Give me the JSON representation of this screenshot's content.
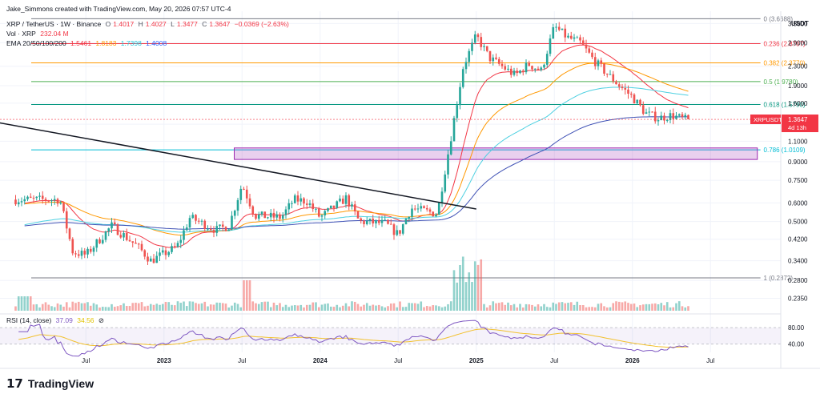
{
  "header": {
    "author_line": "Jake_Simmons created with TradingView.com, May 20, 2026 07:57 UTC-4",
    "symbol": "XRP / TetherUS · 1W · Binance",
    "ohlc": {
      "o_label": "O",
      "o": "1.4017",
      "h_label": "H",
      "h": "1.4027",
      "l_label": "L",
      "l": "1.3477",
      "c_label": "C",
      "c": "1.3647",
      "change": "−0.0369 (−2.63%)"
    },
    "vol_label": "Vol · XRP",
    "vol_value": "232.04 M",
    "ema_label": "EMA 20/50/100/200",
    "ema_values": [
      "1.5461",
      "1.8183",
      "1.7398",
      "1.4008"
    ],
    "rsi_label": "RSI (14, close)",
    "rsi_values": [
      "37.09",
      "34.56"
    ]
  },
  "price_axis": {
    "currency": "USDT",
    "ticks": [
      "3.5000",
      "2.9000",
      "2.3000",
      "1.9000",
      "1.6000",
      "1.3000",
      "1.1000",
      "0.9000",
      "0.7500",
      "0.6000",
      "0.5000",
      "0.4200",
      "0.3400",
      "0.2800",
      "0.2350"
    ],
    "current_label": "XRPUSDT",
    "current_price": "1.3647",
    "countdown": "4d 13h"
  },
  "rsi_axis": {
    "ticks": [
      "80.00",
      "40.00"
    ]
  },
  "time_axis": {
    "labels": [
      "Jul",
      "2023",
      "Jul",
      "2024",
      "Jul",
      "2025",
      "Jul",
      "2026",
      "Jul"
    ]
  },
  "fib_levels": [
    {
      "label": "0 (3.6688)",
      "ratio": 0,
      "price": 3.6688,
      "color": "#787b86"
    },
    {
      "label": "0.236 (2.8707)",
      "ratio": 0.236,
      "price": 2.8707,
      "color": "#f23645"
    },
    {
      "label": "0.382 (2.3770)",
      "ratio": 0.382,
      "price": 2.377,
      "color": "#ff9800"
    },
    {
      "label": "0.5 (1.9780)",
      "ratio": 0.5,
      "price": 1.978,
      "color": "#4caf50"
    },
    {
      "label": "0.618 (1.5790)",
      "ratio": 0.618,
      "price": 1.579,
      "color": "#089981"
    },
    {
      "label": "0.786 (1.0109)",
      "ratio": 0.786,
      "price": 1.0109,
      "color": "#00bcd4"
    },
    {
      "label": "1 (0.2872)",
      "ratio": 1,
      "price": 0.2872,
      "color": "#787b86"
    }
  ],
  "chart_data": {
    "type": "candlestick",
    "symbol": "XRPUSDT",
    "interval": "1W",
    "y_scale": "log",
    "ylim": [
      0.22,
      4.0
    ],
    "close_path": [
      {
        "t": "2022-05",
        "c": 0.62
      },
      {
        "t": "2022-06",
        "c": 0.37
      },
      {
        "t": "2022-07",
        "c": 0.36
      },
      {
        "t": "2022-09",
        "c": 0.48
      },
      {
        "t": "2022-11",
        "c": 0.39
      },
      {
        "t": "2022-12",
        "c": 0.34
      },
      {
        "t": "2023-02",
        "c": 0.39
      },
      {
        "t": "2023-03",
        "c": 0.52
      },
      {
        "t": "2023-05",
        "c": 0.46
      },
      {
        "t": "2023-06",
        "c": 0.48
      },
      {
        "t": "2023-07",
        "c": 0.72
      },
      {
        "t": "2023-08",
        "c": 0.53
      },
      {
        "t": "2023-10",
        "c": 0.52
      },
      {
        "t": "2023-11",
        "c": 0.62
      },
      {
        "t": "2023-12",
        "c": 0.61
      },
      {
        "t": "2024-01",
        "c": 0.52
      },
      {
        "t": "2024-03",
        "c": 0.63
      },
      {
        "t": "2024-04",
        "c": 0.5
      },
      {
        "t": "2024-06",
        "c": 0.49
      },
      {
        "t": "2024-07",
        "c": 0.44
      },
      {
        "t": "2024-08",
        "c": 0.57
      },
      {
        "t": "2024-10",
        "c": 0.54
      },
      {
        "t": "2024-11",
        "c": 1.1
      },
      {
        "t": "2024-12",
        "c": 2.3
      },
      {
        "t": "2025-01",
        "c": 3.1
      },
      {
        "t": "2025-02",
        "c": 2.5
      },
      {
        "t": "2025-04",
        "c": 2.1
      },
      {
        "t": "2025-05",
        "c": 2.35
      },
      {
        "t": "2025-06",
        "c": 2.2
      },
      {
        "t": "2025-07",
        "c": 3.4
      },
      {
        "t": "2025-08",
        "c": 3.05
      },
      {
        "t": "2025-09",
        "c": 2.9
      },
      {
        "t": "2025-10",
        "c": 2.45
      },
      {
        "t": "2025-11",
        "c": 2.15
      },
      {
        "t": "2025-12",
        "c": 1.9
      },
      {
        "t": "2026-01",
        "c": 1.7
      },
      {
        "t": "2026-02",
        "c": 1.45
      },
      {
        "t": "2026-03",
        "c": 1.38
      },
      {
        "t": "2026-04",
        "c": 1.42
      },
      {
        "t": "2026-05",
        "c": 1.3647
      }
    ],
    "annotations": [
      {
        "type": "trendline",
        "from": {
          "t": "2021-12",
          "p": 1.33
        },
        "to": {
          "t": "2024-12",
          "p": 0.57
        }
      },
      {
        "type": "zone",
        "from_t": "2023-07",
        "to_t": "2026-06",
        "low": 0.92,
        "high": 1.03
      }
    ],
    "rsi_overbought": 80,
    "rsi_oversold": 40
  }
}
